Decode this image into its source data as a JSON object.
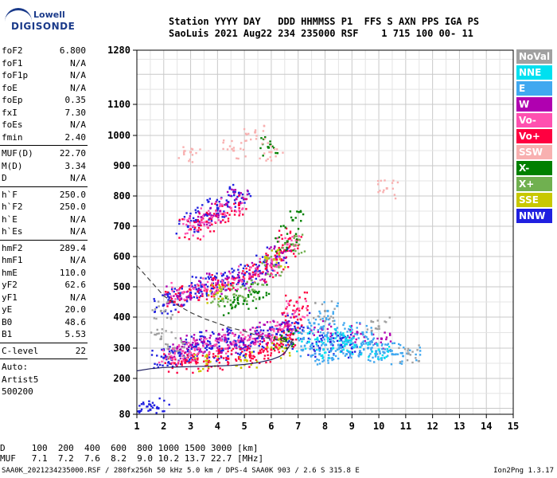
{
  "logo": {
    "line1": "Lowell",
    "line2": "DIGISONDE"
  },
  "header": {
    "line1": "Station YYYY DAY   DDD HHMMSS P1  FFS S AXN PPS IGA PS",
    "line2": "SaoLuis 2021 Aug22 234 235000 RSF    1 715 100 00- 11"
  },
  "params": {
    "group1": [
      {
        "k": "foF2",
        "v": "6.800"
      },
      {
        "k": "foF1",
        "v": "N/A"
      },
      {
        "k": "foF1p",
        "v": "N/A"
      },
      {
        "k": "foE",
        "v": "N/A"
      },
      {
        "k": "foEp",
        "v": "0.35"
      },
      {
        "k": "fxI",
        "v": "7.30"
      },
      {
        "k": "foEs",
        "v": "N/A"
      },
      {
        "k": "fmin",
        "v": "2.40"
      }
    ],
    "group2": [
      {
        "k": "MUF(D)",
        "v": "22.70"
      },
      {
        "k": "M(D)",
        "v": "3.34"
      },
      {
        "k": "D",
        "v": "N/A"
      }
    ],
    "group3": [
      {
        "k": "h`F",
        "v": "250.0"
      },
      {
        "k": "h`F2",
        "v": "250.0"
      },
      {
        "k": "h`E",
        "v": "N/A"
      },
      {
        "k": "h`Es",
        "v": "N/A"
      }
    ],
    "group4": [
      {
        "k": "hmF2",
        "v": "289.4"
      },
      {
        "k": "hmF1",
        "v": "N/A"
      },
      {
        "k": "hmE",
        "v": "110.0"
      },
      {
        "k": "yF2",
        "v": "62.6"
      },
      {
        "k": "yF1",
        "v": "N/A"
      },
      {
        "k": "yE",
        "v": "20.0"
      },
      {
        "k": "B0",
        "v": "48.6"
      },
      {
        "k": "B1",
        "v": "5.53"
      }
    ],
    "group5": [
      {
        "k": "C-level",
        "v": "22"
      }
    ],
    "autoscale": [
      "Auto:",
      "Artist5",
      "500200"
    ]
  },
  "legend": [
    {
      "label": "NoVal",
      "color": "#a0a0a0"
    },
    {
      "label": "NNE",
      "color": "#00e0f0"
    },
    {
      "label": "E",
      "color": "#40a8f0"
    },
    {
      "label": "W",
      "color": "#b000b0"
    },
    {
      "label": "Vo-",
      "color": "#ff50b0"
    },
    {
      "label": "Vo+",
      "color": "#ff0040"
    },
    {
      "label": "SSW",
      "color": "#f8b0b0"
    },
    {
      "label": "X-",
      "color": "#008000"
    },
    {
      "label": "X+",
      "color": "#70b050"
    },
    {
      "label": "SSE",
      "color": "#c8c800"
    },
    {
      "label": "NNW",
      "color": "#2020e0"
    }
  ],
  "footer": {
    "line1": "D     100  200  400  600  800 1000 1500 3000 [km]",
    "line2": "MUF   7.1  7.2  7.6  8.2  9.0 10.2 13.7 22.7 [MHz]",
    "line3": "SAA0K_2021234235000.RSF / 280fx256h 50 kHz 5.0 km / DPS-4 SAA0K 903 / 2.6 S 315.8 E",
    "version": "Ion2Png 1.3.17"
  },
  "chart_data": {
    "type": "scatter",
    "xlabel": "",
    "ylabel": "",
    "xlim": [
      1,
      15
    ],
    "ylim": [
      80,
      1280
    ],
    "x_ticks": [
      1,
      2,
      3,
      4,
      5,
      6,
      7,
      8,
      9,
      10,
      11,
      12,
      13,
      14,
      15
    ],
    "y_ticks": [
      80,
      200,
      300,
      400,
      500,
      600,
      700,
      800,
      900,
      1000,
      1100,
      1280
    ],
    "grid": true,
    "legend_position": "right",
    "series": [
      {
        "name": "NNW",
        "color": "#2020e0",
        "points": [
          [
            1.1,
            90
          ],
          [
            1.5,
            95
          ],
          [
            1.8,
            100
          ],
          [
            2.0,
            268
          ],
          [
            2.3,
            262
          ],
          [
            2.6,
            275
          ],
          [
            2.9,
            290
          ],
          [
            3.2,
            305
          ],
          [
            3.5,
            320
          ],
          [
            3.8,
            300
          ],
          [
            4.1,
            290
          ],
          [
            4.4,
            330
          ],
          [
            4.7,
            310
          ],
          [
            5.0,
            300
          ],
          [
            5.3,
            320
          ],
          [
            5.6,
            340
          ],
          [
            5.9,
            335
          ],
          [
            6.2,
            345
          ],
          [
            6.5,
            330
          ],
          [
            6.8,
            360
          ],
          [
            7.0,
            380
          ],
          [
            2.0,
            440
          ],
          [
            2.3,
            450
          ],
          [
            2.6,
            470
          ],
          [
            3.0,
            480
          ],
          [
            3.4,
            500
          ],
          [
            3.8,
            510
          ],
          [
            4.2,
            520
          ],
          [
            4.6,
            530
          ],
          [
            5.0,
            540
          ],
          [
            5.4,
            550
          ],
          [
            5.8,
            570
          ],
          [
            6.2,
            600
          ],
          [
            2.9,
            700
          ],
          [
            3.2,
            720
          ],
          [
            3.6,
            740
          ],
          [
            4.0,
            760
          ],
          [
            4.4,
            780
          ],
          [
            4.8,
            810
          ],
          [
            7.8,
            300
          ],
          [
            8.2,
            320
          ],
          [
            8.6,
            310
          ],
          [
            9.0,
            300
          ]
        ]
      },
      {
        "name": "Vo+",
        "color": "#ff0040",
        "points": [
          [
            2.4,
            250
          ],
          [
            2.8,
            252
          ],
          [
            3.2,
            255
          ],
          [
            3.6,
            258
          ],
          [
            4.0,
            262
          ],
          [
            4.4,
            265
          ],
          [
            4.8,
            270
          ],
          [
            5.2,
            276
          ],
          [
            5.6,
            285
          ],
          [
            6.0,
            295
          ],
          [
            6.3,
            310
          ],
          [
            6.5,
            330
          ],
          [
            6.7,
            360
          ],
          [
            6.85,
            400
          ],
          [
            6.95,
            450
          ],
          [
            2.4,
            450
          ],
          [
            3.0,
            470
          ],
          [
            3.6,
            490
          ],
          [
            4.2,
            505
          ],
          [
            4.8,
            520
          ],
          [
            5.4,
            540
          ],
          [
            5.8,
            560
          ],
          [
            6.2,
            590
          ],
          [
            6.5,
            620
          ],
          [
            6.7,
            660
          ],
          [
            3.0,
            690
          ],
          [
            3.6,
            715
          ],
          [
            4.2,
            740
          ],
          [
            4.8,
            770
          ]
        ]
      },
      {
        "name": "W",
        "color": "#b000b0",
        "points": [
          [
            2.5,
            300
          ],
          [
            3.0,
            310
          ],
          [
            3.5,
            320
          ],
          [
            4.0,
            330
          ],
          [
            4.5,
            315
          ],
          [
            5.0,
            330
          ],
          [
            5.5,
            345
          ],
          [
            6.0,
            360
          ],
          [
            6.6,
            380
          ],
          [
            2.5,
            470
          ],
          [
            3.3,
            490
          ],
          [
            4.0,
            510
          ],
          [
            4.8,
            520
          ],
          [
            5.6,
            545
          ],
          [
            6.3,
            600
          ],
          [
            3.4,
            730
          ],
          [
            4.1,
            750
          ],
          [
            4.7,
            790
          ],
          [
            7.9,
            360
          ],
          [
            9.2,
            350
          ],
          [
            10.1,
            330
          ]
        ]
      },
      {
        "name": "Vo-",
        "color": "#ff50b0",
        "points": [
          [
            2.2,
            280
          ],
          [
            2.7,
            290
          ],
          [
            3.3,
            300
          ],
          [
            3.9,
            310
          ],
          [
            4.6,
            320
          ],
          [
            5.2,
            330
          ],
          [
            5.8,
            340
          ],
          [
            6.4,
            360
          ],
          [
            6.9,
            420
          ],
          [
            2.7,
            480
          ],
          [
            3.5,
            500
          ],
          [
            4.4,
            515
          ],
          [
            5.2,
            535
          ],
          [
            6.0,
            570
          ],
          [
            6.6,
            640
          ],
          [
            3.1,
            700
          ],
          [
            3.8,
            730
          ],
          [
            4.5,
            760
          ]
        ]
      },
      {
        "name": "E",
        "color": "#40a8f0",
        "points": [
          [
            7.2,
            330
          ],
          [
            7.5,
            300
          ],
          [
            7.8,
            280
          ],
          [
            8.0,
            340
          ],
          [
            8.2,
            290
          ],
          [
            8.5,
            310
          ],
          [
            8.8,
            280
          ],
          [
            9.0,
            330
          ],
          [
            9.3,
            290
          ],
          [
            9.6,
            300
          ],
          [
            9.9,
            290
          ],
          [
            10.2,
            285
          ],
          [
            10.5,
            280
          ],
          [
            11.1,
            282
          ],
          [
            7.6,
            380
          ],
          [
            8.4,
            360
          ],
          [
            9.4,
            350
          ],
          [
            8.1,
            420
          ],
          [
            9.7,
            320
          ]
        ]
      },
      {
        "name": "NNE",
        "color": "#00e0f0",
        "points": [
          [
            7.4,
            320
          ],
          [
            8.3,
            300
          ],
          [
            9.1,
            310
          ],
          [
            10.0,
            295
          ],
          [
            8.7,
            340
          ]
        ]
      },
      {
        "name": "X-",
        "color": "#008000",
        "points": [
          [
            6.8,
            720
          ],
          [
            6.6,
            650
          ],
          [
            5.5,
            480
          ],
          [
            5.0,
            455
          ],
          [
            4.5,
            440
          ],
          [
            5.9,
            960
          ],
          [
            6.5,
            330
          ]
        ]
      },
      {
        "name": "X+",
        "color": "#70b050",
        "points": [
          [
            6.1,
            570
          ],
          [
            5.3,
            490
          ],
          [
            4.8,
            470
          ],
          [
            6.8,
            640
          ],
          [
            4.2,
            460
          ]
        ]
      },
      {
        "name": "SSE",
        "color": "#c8c800",
        "points": [
          [
            3.6,
            248
          ],
          [
            5.1,
            258
          ],
          [
            6.3,
            300
          ],
          [
            4.0,
            480
          ],
          [
            6.1,
            590
          ]
        ]
      },
      {
        "name": "SSW",
        "color": "#f8b0b0",
        "points": [
          [
            3.0,
            945
          ],
          [
            5.4,
            1010
          ],
          [
            6.0,
            945
          ],
          [
            10.3,
            825
          ],
          [
            4.6,
            950
          ]
        ]
      },
      {
        "name": "NoVal",
        "color": "#a0a0a0",
        "points": [
          [
            11.1,
            282
          ],
          [
            10.0,
            370
          ],
          [
            8.0,
            420
          ],
          [
            2.4,
            300
          ],
          [
            1.9,
            330
          ],
          [
            1.9,
            420
          ]
        ]
      }
    ],
    "curves": [
      {
        "name": "profile",
        "color": "#202060",
        "style": "solid",
        "points": [
          [
            1,
            225
          ],
          [
            1.5,
            232
          ],
          [
            2,
            236
          ],
          [
            2.5,
            238
          ],
          [
            3,
            239
          ],
          [
            3.5,
            240
          ],
          [
            4,
            241
          ],
          [
            4.5,
            243
          ],
          [
            5,
            246
          ],
          [
            5.5,
            252
          ],
          [
            6,
            262
          ],
          [
            6.3,
            272
          ],
          [
            6.5,
            284
          ],
          [
            6.7,
            310
          ],
          [
            6.8,
            330
          ]
        ]
      },
      {
        "name": "curve-dashed",
        "color": "#404040",
        "style": "dashed",
        "points": [
          [
            1,
            570
          ],
          [
            1.5,
            520
          ],
          [
            2,
            470
          ],
          [
            2.5,
            440
          ],
          [
            3,
            415
          ],
          [
            3.5,
            395
          ],
          [
            4,
            380
          ],
          [
            4.5,
            365
          ],
          [
            5,
            355
          ],
          [
            5.5,
            340
          ],
          [
            6,
            330
          ],
          [
            6.5,
            322
          ],
          [
            6.9,
            318
          ]
        ]
      }
    ]
  }
}
